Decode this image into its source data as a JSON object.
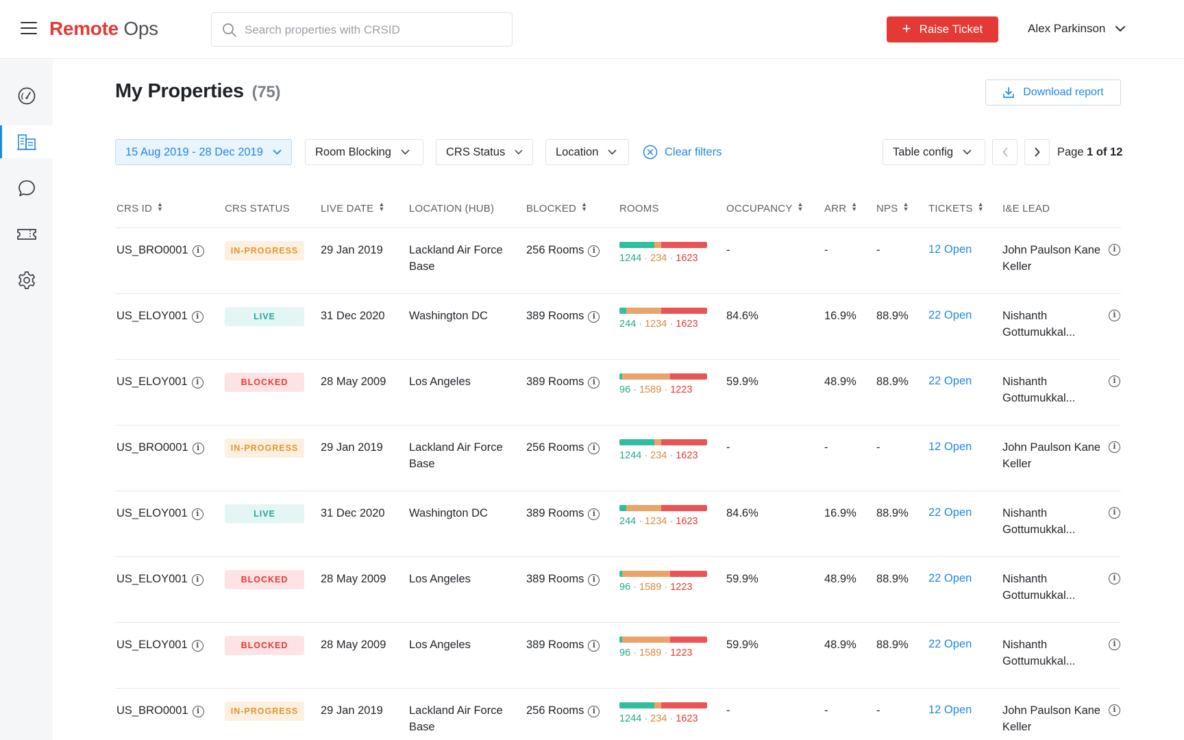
{
  "header": {
    "logo_brand": "Remote",
    "logo_suffix": "Ops",
    "search_placeholder": "Search properties with CRSID",
    "raise_ticket_label": "Raise Ticket",
    "user_name": "Alex Parkinson"
  },
  "sidebar": {
    "items": [
      {
        "icon": "dashboard-icon",
        "active": false
      },
      {
        "icon": "buildings-icon",
        "active": true
      },
      {
        "icon": "chat-icon",
        "active": false
      },
      {
        "icon": "ticket-icon",
        "active": false
      },
      {
        "icon": "settings-icon",
        "active": false
      }
    ]
  },
  "page": {
    "title": "My Properties",
    "count": "(75)",
    "download_label": "Download report"
  },
  "filters": {
    "date_range": "15 Aug 2019 - 28 Dec 2019",
    "room_blocking": "Room Blocking",
    "crs_status": "CRS Status",
    "location": "Location",
    "clear": "Clear filters",
    "table_config": "Table config",
    "page_prefix": "Page",
    "page_current": "1 of 12"
  },
  "table": {
    "columns": [
      "CRS ID",
      "CRS STATUS",
      "LIVE DATE",
      "LOCATION (HUB)",
      "BLOCKED",
      "ROOMS",
      "OCCUPANCY",
      "ARR",
      "NPS",
      "TICKETS",
      "I&E LEAD"
    ],
    "rows": [
      {
        "crs_id": "US_BRO0001",
        "status": "IN-PROGRESS",
        "status_kind": "inprogress",
        "live_date": "29 Jan 2019",
        "location": "Lackland Air Force Base",
        "blocked": "256 Rooms",
        "rooms": [
          1244,
          234,
          1623
        ],
        "occupancy": "-",
        "arr": "-",
        "nps": "-",
        "tickets": "12 Open",
        "lead": "John Paulson Kane Keller"
      },
      {
        "crs_id": "US_ELOY001",
        "status": "LIVE",
        "status_kind": "live",
        "live_date": "31 Dec 2020",
        "location": "Washington DC",
        "blocked": "389 Rooms",
        "rooms": [
          244,
          1234,
          1623
        ],
        "occupancy": "84.6%",
        "arr": "16.9%",
        "nps": "88.9%",
        "tickets": "22 Open",
        "lead": "Nishanth Gottumukkal..."
      },
      {
        "crs_id": "US_ELOY001",
        "status": "BLOCKED",
        "status_kind": "blocked",
        "live_date": "28 May 2009",
        "location": "Los Angeles",
        "blocked": "389 Rooms",
        "rooms": [
          96,
          1589,
          1223
        ],
        "occupancy": "59.9%",
        "arr": "48.9%",
        "nps": "88.9%",
        "tickets": "22 Open",
        "lead": "Nishanth Gottumukkal..."
      },
      {
        "crs_id": "US_BRO0001",
        "status": "IN-PROGRESS",
        "status_kind": "inprogress",
        "live_date": "29 Jan 2019",
        "location": "Lackland Air Force Base",
        "blocked": "256 Rooms",
        "rooms": [
          1244,
          234,
          1623
        ],
        "occupancy": "-",
        "arr": "-",
        "nps": "-",
        "tickets": "12 Open",
        "lead": "John Paulson Kane Keller"
      },
      {
        "crs_id": "US_ELOY001",
        "status": "LIVE",
        "status_kind": "live",
        "live_date": "31 Dec 2020",
        "location": "Washington DC",
        "blocked": "389 Rooms",
        "rooms": [
          244,
          1234,
          1623
        ],
        "occupancy": "84.6%",
        "arr": "16.9%",
        "nps": "88.9%",
        "tickets": "22 Open",
        "lead": "Nishanth Gottumukkal..."
      },
      {
        "crs_id": "US_ELOY001",
        "status": "BLOCKED",
        "status_kind": "blocked",
        "live_date": "28 May 2009",
        "location": "Los Angeles",
        "blocked": "389 Rooms",
        "rooms": [
          96,
          1589,
          1223
        ],
        "occupancy": "59.9%",
        "arr": "48.9%",
        "nps": "88.9%",
        "tickets": "22 Open",
        "lead": "Nishanth Gottumukkal..."
      },
      {
        "crs_id": "US_ELOY001",
        "status": "BLOCKED",
        "status_kind": "blocked",
        "live_date": "28 May 2009",
        "location": "Los Angeles",
        "blocked": "389 Rooms",
        "rooms": [
          96,
          1589,
          1223
        ],
        "occupancy": "59.9%",
        "arr": "48.9%",
        "nps": "88.9%",
        "tickets": "22 Open",
        "lead": "Nishanth Gottumukkal..."
      },
      {
        "crs_id": "US_BRO0001",
        "status": "IN-PROGRESS",
        "status_kind": "inprogress",
        "live_date": "29 Jan 2019",
        "location": "Lackland Air Force Base",
        "blocked": "256 Rooms",
        "rooms": [
          1244,
          234,
          1623
        ],
        "occupancy": "-",
        "arr": "-",
        "nps": "-",
        "tickets": "12 Open",
        "lead": "John Paulson Kane Keller"
      }
    ]
  },
  "colors": {
    "brand_red": "#e53935",
    "accent_blue": "#1e88e5",
    "rooms_green": "#2fbf9f",
    "rooms_orange": "#e9a36b",
    "rooms_red": "#ea5455"
  }
}
